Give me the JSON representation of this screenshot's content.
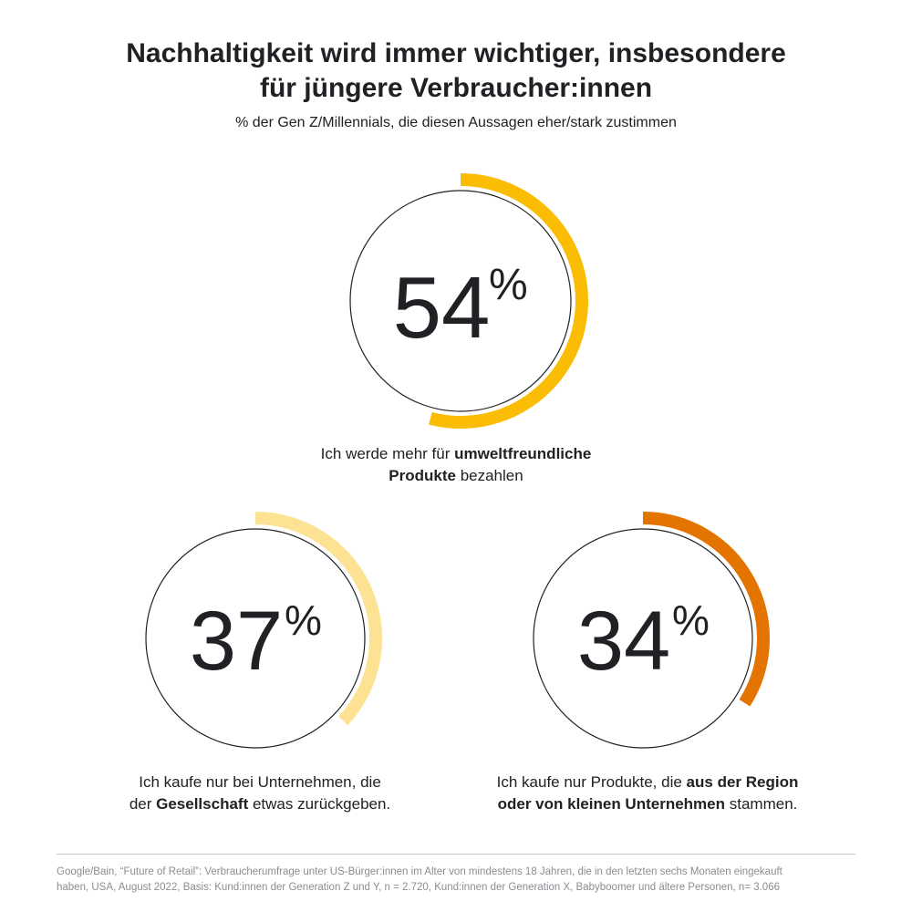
{
  "title_lines": [
    "Nachhaltigkeit wird immer wichtiger, insbesondere",
    "für jüngere Verbraucher:innen"
  ],
  "subtitle": "% der Gen Z/Millennials, die diesen Aussagen eher/stark zustimmen",
  "chart_data": [
    {
      "type": "pie",
      "value": 54,
      "label": "54",
      "unit": "%",
      "color": "#fbbc04",
      "caption_lines": [
        [
          {
            "text": "Ich werde mehr für ",
            "bold": false
          },
          {
            "text": "umweltfreundliche",
            "bold": true
          }
        ],
        [
          {
            "text": "Produkte",
            "bold": true
          },
          {
            "text": " bezahlen",
            "bold": false
          }
        ]
      ]
    },
    {
      "type": "pie",
      "value": 37,
      "label": "37",
      "unit": "%",
      "color": "#fde293",
      "caption_lines": [
        [
          {
            "text": "Ich kaufe nur bei Unternehmen, die",
            "bold": false
          }
        ],
        [
          {
            "text": "der ",
            "bold": false
          },
          {
            "text": "Gesellschaft",
            "bold": true
          },
          {
            "text": " etwas zurückgeben.",
            "bold": false
          }
        ]
      ]
    },
    {
      "type": "pie",
      "value": 34,
      "label": "34",
      "unit": "%",
      "color": "#e37400",
      "caption_lines": [
        [
          {
            "text": "Ich kaufe nur Produkte, die ",
            "bold": false
          },
          {
            "text": "aus der Region",
            "bold": true
          }
        ],
        [
          {
            "text": "oder von kleinen Unternehmen",
            "bold": true
          },
          {
            "text": " stammen.",
            "bold": false
          }
        ]
      ]
    }
  ],
  "source_lines": [
    "Google/Bain, “Future of Retail”: Verbraucherumfrage unter US-Bürger:innen im Alter von mindestens 18 Jahren, die in den letzten sechs Monaten eingekauft",
    "haben, USA, August 2022, Basis: Kund:innen der Generation Z und Y, n = 2.720, Kund:innen der Generation X, Babyboomer und ältere Personen, n= 3.066"
  ]
}
